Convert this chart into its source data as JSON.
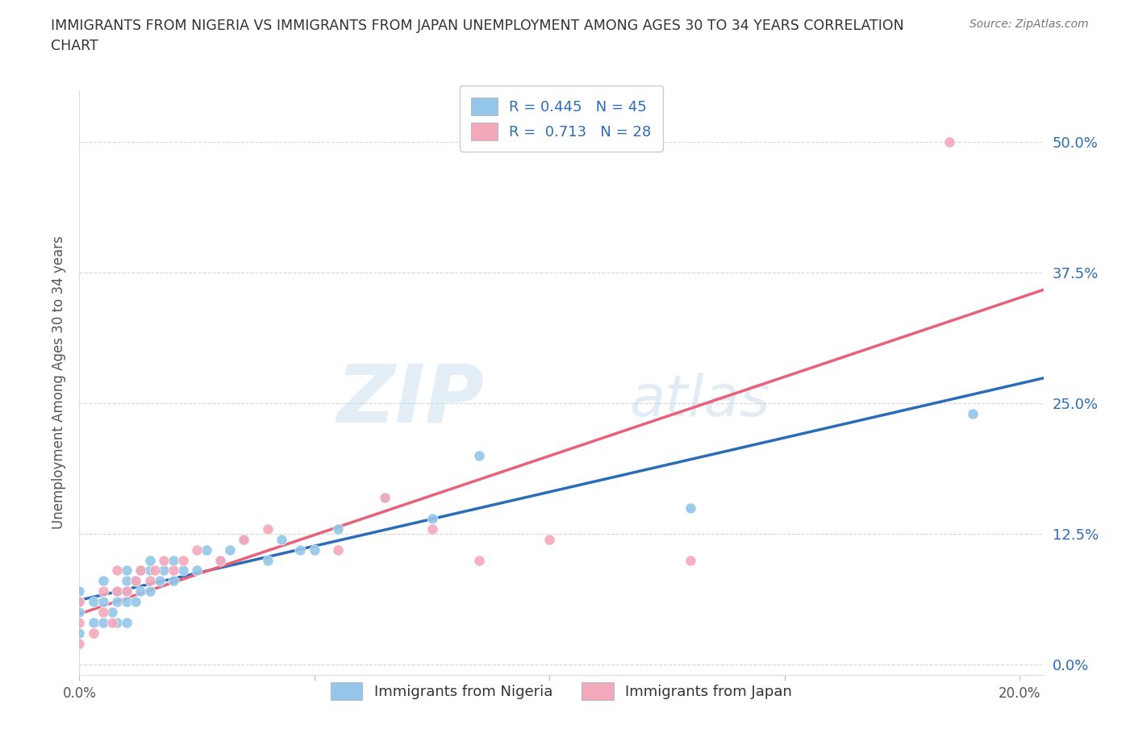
{
  "title": "IMMIGRANTS FROM NIGERIA VS IMMIGRANTS FROM JAPAN UNEMPLOYMENT AMONG AGES 30 TO 34 YEARS CORRELATION\nCHART",
  "source": "Source: ZipAtlas.com",
  "ylabel": "Unemployment Among Ages 30 to 34 years",
  "xlim": [
    0.0,
    0.205
  ],
  "ylim": [
    -0.01,
    0.55
  ],
  "yticks": [
    0.0,
    0.125,
    0.25,
    0.375,
    0.5
  ],
  "ytick_labels": [
    "0.0%",
    "12.5%",
    "25.0%",
    "37.5%",
    "50.0%"
  ],
  "xticks": [
    0.0,
    0.05,
    0.1,
    0.15,
    0.2
  ],
  "xtick_labels": [
    "0.0%",
    "",
    "",
    "",
    "20.0%"
  ],
  "nigeria_color": "#93C6E8",
  "japan_color": "#F4A8BB",
  "nigeria_line_color": "#2B6CB8",
  "japan_line_color": "#E8607A",
  "R_nigeria": 0.445,
  "N_nigeria": 45,
  "R_japan": 0.713,
  "N_japan": 28,
  "watermark_zip": "ZIP",
  "watermark_atlas": "atlas",
  "nigeria_scatter_x": [
    0.0,
    0.0,
    0.0,
    0.0,
    0.003,
    0.003,
    0.005,
    0.005,
    0.005,
    0.007,
    0.008,
    0.008,
    0.008,
    0.01,
    0.01,
    0.01,
    0.01,
    0.01,
    0.012,
    0.012,
    0.013,
    0.013,
    0.015,
    0.015,
    0.015,
    0.017,
    0.018,
    0.02,
    0.02,
    0.022,
    0.025,
    0.027,
    0.03,
    0.032,
    0.035,
    0.04,
    0.043,
    0.047,
    0.05,
    0.055,
    0.065,
    0.075,
    0.085,
    0.13,
    0.19
  ],
  "nigeria_scatter_y": [
    0.03,
    0.05,
    0.06,
    0.07,
    0.04,
    0.06,
    0.04,
    0.06,
    0.08,
    0.05,
    0.04,
    0.06,
    0.07,
    0.04,
    0.06,
    0.07,
    0.08,
    0.09,
    0.06,
    0.08,
    0.07,
    0.09,
    0.07,
    0.09,
    0.1,
    0.08,
    0.09,
    0.08,
    0.1,
    0.09,
    0.09,
    0.11,
    0.1,
    0.11,
    0.12,
    0.1,
    0.12,
    0.11,
    0.11,
    0.13,
    0.16,
    0.14,
    0.2,
    0.15,
    0.24
  ],
  "japan_scatter_x": [
    0.0,
    0.0,
    0.0,
    0.003,
    0.005,
    0.005,
    0.007,
    0.008,
    0.008,
    0.01,
    0.012,
    0.013,
    0.015,
    0.016,
    0.018,
    0.02,
    0.022,
    0.025,
    0.03,
    0.035,
    0.04,
    0.055,
    0.065,
    0.075,
    0.085,
    0.1,
    0.13,
    0.185
  ],
  "japan_scatter_y": [
    0.02,
    0.04,
    0.06,
    0.03,
    0.05,
    0.07,
    0.04,
    0.07,
    0.09,
    0.07,
    0.08,
    0.09,
    0.08,
    0.09,
    0.1,
    0.09,
    0.1,
    0.11,
    0.1,
    0.12,
    0.13,
    0.11,
    0.16,
    0.13,
    0.1,
    0.12,
    0.1,
    0.5
  ]
}
